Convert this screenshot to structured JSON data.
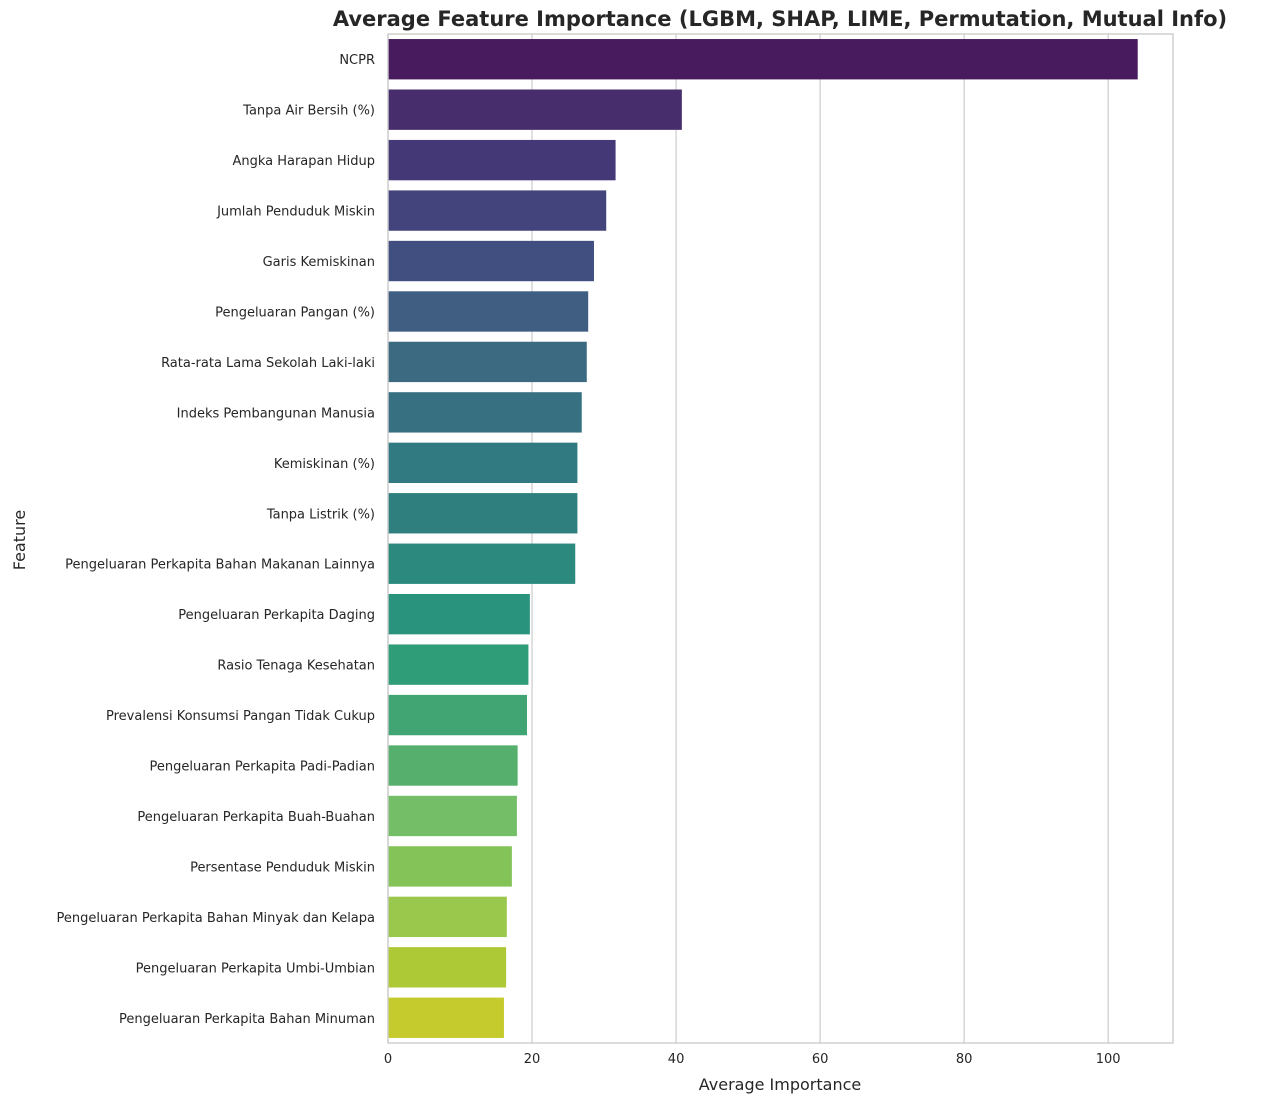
{
  "chart_data": {
    "type": "bar",
    "orientation": "horizontal",
    "title": "Average Feature Importance (LGBM, SHAP, LIME, Permutation, Mutual Info)",
    "xlabel": "Average Importance",
    "ylabel": "Feature",
    "xlim": [
      0,
      109
    ],
    "xticks": [
      0,
      20,
      40,
      60,
      80,
      100
    ],
    "grid": "vertical",
    "palette": "viridis",
    "categories": [
      "NCPR",
      "Tanpa Air Bersih (%)",
      "Angka Harapan Hidup",
      "Jumlah Penduduk Miskin",
      "Garis Kemiskinan",
      "Pengeluaran Pangan (%)",
      "Rata-rata Lama Sekolah Laki-laki",
      "Indeks Pembangunan Manusia",
      "Kemiskinan (%)",
      "Tanpa Listrik (%)",
      "Pengeluaran Perkapita Bahan Makanan Lainnya",
      "Pengeluaran Perkapita Daging",
      "Rasio Tenaga Kesehatan",
      "Prevalensi Konsumsi Pangan Tidak Cukup",
      "Pengeluaran Perkapita Padi-Padian",
      "Pengeluaran Perkapita Buah-Buahan",
      "Persentase Penduduk Miskin",
      "Pengeluaran Perkapita Bahan Minyak dan Kelapa",
      "Pengeluaran Perkapita Umbi-Umbian",
      "Pengeluaran Perkapita Bahan Minuman"
    ],
    "values": [
      104.1,
      40.8,
      31.6,
      30.3,
      28.6,
      27.8,
      27.6,
      26.9,
      26.3,
      26.3,
      26.0,
      19.7,
      19.5,
      19.3,
      18.0,
      17.9,
      17.2,
      16.5,
      16.4,
      16.1
    ],
    "colors": [
      "#471B5D",
      "#472D6C",
      "#453877",
      "#43447C",
      "#404F80",
      "#3F5E81",
      "#3B6A81",
      "#377081",
      "#327A81",
      "#2F7F7F",
      "#2B897E",
      "#29937D",
      "#2E9D78",
      "#40A573",
      "#56AF6D",
      "#73BE66",
      "#84C358",
      "#99C84C",
      "#ADC935",
      "#C6CB2D"
    ]
  }
}
